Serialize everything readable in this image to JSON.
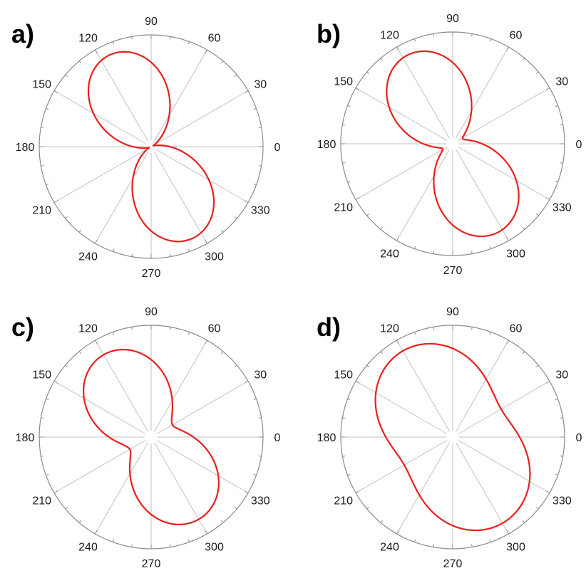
{
  "chart_data": [
    {
      "type": "polar",
      "panel_label": "a)",
      "angle_ticks": [
        "0",
        "30",
        "60",
        "90",
        "120",
        "150",
        "180",
        "210",
        "240",
        "270",
        "300",
        "330"
      ],
      "series": [
        {
          "r_max": 0.9,
          "r_min": 0.02,
          "lobes": 2,
          "phase_deg": 114,
          "theta_start_deg": 330,
          "theta_end_deg": 690,
          "color": "#e8201e"
        }
      ]
    },
    {
      "type": "polar",
      "panel_label": "b)",
      "angle_ticks": [
        "0",
        "30",
        "60",
        "90",
        "120",
        "150",
        "180",
        "210",
        "240",
        "270",
        "300",
        "330"
      ],
      "series": [
        {
          "r_max": 0.89,
          "r_min": 0.1,
          "lobes": 2,
          "phase_deg": 117,
          "theta_start_deg": 330,
          "theta_end_deg": 690,
          "color": "#e8201e"
        }
      ]
    },
    {
      "type": "polar",
      "panel_label": "c)",
      "angle_ticks": [
        "0",
        "30",
        "60",
        "90",
        "120",
        "150",
        "180",
        "210",
        "240",
        "270",
        "300",
        "330"
      ],
      "series": [
        {
          "r_max": 0.85,
          "r_min": 0.22,
          "lobes": 2,
          "phase_deg": 120,
          "theta_start_deg": 330,
          "theta_end_deg": 690,
          "color": "#e8201e"
        }
      ]
    },
    {
      "type": "polar",
      "panel_label": "d)",
      "angle_ticks": [
        "0",
        "30",
        "60",
        "90",
        "120",
        "150",
        "180",
        "210",
        "240",
        "270",
        "300",
        "330"
      ],
      "series": [
        {
          "r_max": 0.89,
          "r_min": 0.5,
          "lobes": 2,
          "phase_deg": 120,
          "theta_start_deg": 330,
          "theta_end_deg": 690,
          "color": "#e8201e"
        }
      ]
    }
  ]
}
